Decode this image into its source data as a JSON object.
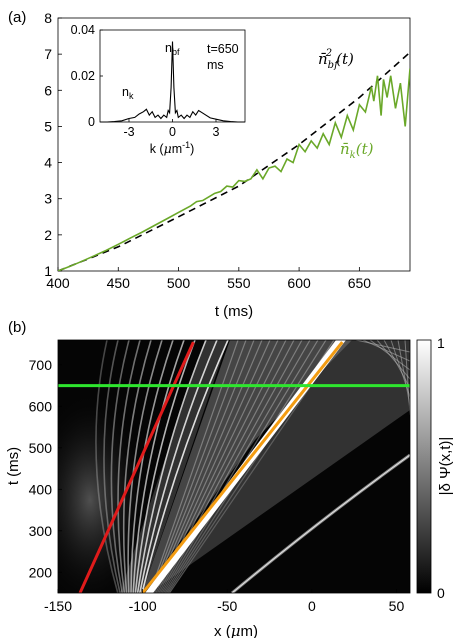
{
  "chart_data": [
    {
      "type": "line",
      "panel_label": "(a)",
      "xlabel": "t (ms)",
      "ylabel": "",
      "xlim": [
        400,
        692
      ],
      "ylim": [
        1,
        8
      ],
      "xticks": [
        "400",
        "450",
        "500",
        "550",
        "600",
        "650"
      ],
      "yticks": [
        "1",
        "2",
        "3",
        "4",
        "5",
        "6",
        "7",
        "8"
      ],
      "grid": false,
      "series": [
        {
          "name": "n̄²bf(t)",
          "style": "dashed",
          "color": "#000000",
          "x": [
            400,
            450,
            500,
            550,
            600,
            650,
            692
          ],
          "y": [
            1.0,
            1.67,
            2.5,
            3.35,
            4.5,
            5.8,
            7.05
          ]
        },
        {
          "name": "n̄k(t)",
          "style": "solid",
          "color": "#6aa829",
          "x": [
            400,
            410,
            420,
            430,
            440,
            450,
            460,
            470,
            480,
            490,
            500,
            510,
            515,
            520,
            525,
            530,
            535,
            540,
            545,
            550,
            555,
            560,
            565,
            570,
            575,
            580,
            585,
            590,
            595,
            600,
            605,
            610,
            615,
            620,
            625,
            630,
            635,
            640,
            645,
            650,
            655,
            660,
            662,
            665,
            668,
            670,
            673,
            676,
            680,
            684,
            688,
            692
          ],
          "y": [
            1.0,
            1.13,
            1.27,
            1.42,
            1.57,
            1.74,
            1.91,
            2.08,
            2.26,
            2.44,
            2.62,
            2.8,
            2.92,
            2.95,
            3.05,
            3.15,
            3.2,
            3.35,
            3.32,
            3.5,
            3.48,
            3.55,
            3.8,
            3.55,
            3.85,
            3.9,
            3.75,
            4.1,
            4.0,
            4.5,
            4.3,
            4.6,
            4.4,
            4.8,
            4.5,
            5.1,
            4.7,
            5.3,
            4.9,
            5.6,
            5.4,
            6.1,
            5.7,
            6.4,
            5.3,
            6.3,
            5.8,
            6.4,
            5.5,
            6.2,
            5.0,
            6.6
          ]
        }
      ],
      "annotations": [
        {
          "text": "n̄k(t)",
          "color": "#6aa829"
        },
        {
          "text": "n̄²bf(t)",
          "color": "#000000"
        }
      ],
      "inset": {
        "type": "line",
        "xlabel": "k (μm⁻¹)",
        "xlim": [
          -5,
          5
        ],
        "ylim": [
          0,
          0.04
        ],
        "xticks": [
          "-3",
          "0",
          "3"
        ],
        "yticks": [
          "0",
          "0.02",
          "0.04"
        ],
        "labels": {
          "nbf": "n",
          "nbf_sub": "bf",
          "nk": "n",
          "nk_sub": "k",
          "time_line1": "t=650",
          "time_line2": "ms"
        },
        "series": [
          {
            "name": "spectrum",
            "color": "#000000",
            "x": [
              -5,
              -4.5,
              -4,
              -3.5,
              -3,
              -2.6,
              -2.3,
              -2.0,
              -1.8,
              -1.6,
              -1.4,
              -1.2,
              -1.0,
              -0.8,
              -0.6,
              -0.4,
              -0.3,
              -0.2,
              -0.1,
              0,
              0.1,
              0.2,
              0.3,
              0.4,
              0.6,
              0.8,
              1.0,
              1.2,
              1.4,
              1.6,
              1.8,
              2.0,
              2.3,
              2.6,
              3.0,
              3.5,
              4.0,
              4.5,
              5.0
            ],
            "y": [
              0.0,
              0.0,
              0.0002,
              0.0005,
              0.0015,
              0.002,
              0.0035,
              0.0045,
              0.0055,
              0.003,
              0.0045,
              0.002,
              0.003,
              0.0015,
              0.003,
              0.002,
              0.005,
              0.004,
              0.015,
              0.035,
              0.015,
              0.004,
              0.005,
              0.002,
              0.003,
              0.0015,
              0.003,
              0.002,
              0.0045,
              0.003,
              0.005,
              0.0042,
              0.003,
              0.0018,
              0.0012,
              0.0005,
              0.0002,
              0.0,
              0.0
            ]
          }
        ]
      }
    },
    {
      "type": "heatmap",
      "panel_label": "(b)",
      "xlabel": "x (μm)",
      "ylabel": "t (ms)",
      "xlim": [
        -150,
        58
      ],
      "ylim": [
        150,
        760
      ],
      "xticks": [
        "-150",
        "-100",
        "-50",
        "0",
        "50"
      ],
      "yticks": [
        "200",
        "300",
        "400",
        "500",
        "600",
        "700"
      ],
      "colorbar": {
        "label": "|δ Ψ(x,t)|",
        "min_label": "0",
        "max_label": "1",
        "range": [
          0,
          1
        ]
      },
      "lines": [
        {
          "name": "red",
          "color": "#e01b1b",
          "x": [
            -137,
            -70
          ],
          "y": [
            150,
            755
          ]
        },
        {
          "name": "orange",
          "color": "#f39c12",
          "x": [
            -100,
            18
          ],
          "y": [
            150,
            755
          ]
        },
        {
          "name": "green",
          "color": "#2ee62e",
          "x": [
            -150,
            58
          ],
          "y": [
            650,
            650
          ]
        }
      ]
    }
  ]
}
